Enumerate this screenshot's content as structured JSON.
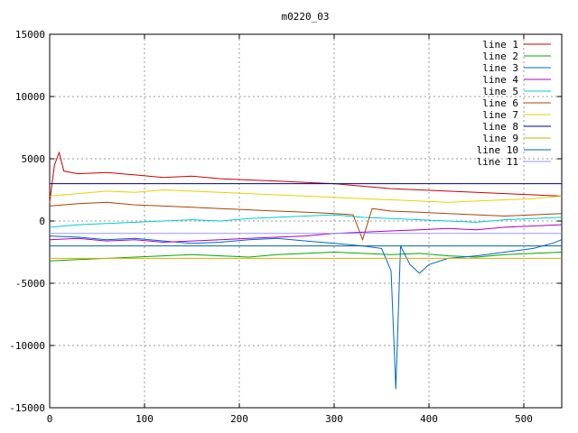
{
  "chart_data": {
    "type": "line",
    "title": "m0220_03",
    "xlabel": "",
    "ylabel": "",
    "xlim": [
      0,
      540
    ],
    "ylim": [
      -15000,
      15000
    ],
    "xticks": [
      0,
      100,
      200,
      300,
      400,
      500
    ],
    "yticks": [
      -15000,
      -10000,
      -5000,
      0,
      5000,
      10000,
      15000
    ],
    "grid": true,
    "legend_position": "top-right",
    "series": [
      {
        "name": "line 1",
        "color": "#cc0000",
        "points": [
          [
            0,
            1500
          ],
          [
            5,
            4500
          ],
          [
            10,
            5500
          ],
          [
            15,
            4000
          ],
          [
            30,
            3800
          ],
          [
            60,
            3900
          ],
          [
            90,
            3700
          ],
          [
            120,
            3500
          ],
          [
            150,
            3600
          ],
          [
            180,
            3400
          ],
          [
            210,
            3300
          ],
          [
            240,
            3200
          ],
          [
            270,
            3100
          ],
          [
            300,
            3000
          ],
          [
            330,
            2800
          ],
          [
            360,
            2600
          ],
          [
            390,
            2500
          ],
          [
            420,
            2400
          ],
          [
            450,
            2300
          ],
          [
            480,
            2200
          ],
          [
            510,
            2100
          ],
          [
            540,
            2000
          ]
        ]
      },
      {
        "name": "line 2",
        "color": "#00aa00",
        "points": [
          [
            0,
            -3200
          ],
          [
            30,
            -3100
          ],
          [
            60,
            -3000
          ],
          [
            90,
            -2900
          ],
          [
            120,
            -2800
          ],
          [
            150,
            -2700
          ],
          [
            180,
            -2800
          ],
          [
            210,
            -2900
          ],
          [
            240,
            -2700
          ],
          [
            270,
            -2600
          ],
          [
            300,
            -2500
          ],
          [
            330,
            -2600
          ],
          [
            360,
            -2700
          ],
          [
            390,
            -2600
          ],
          [
            420,
            -2800
          ],
          [
            450,
            -2900
          ],
          [
            480,
            -2700
          ],
          [
            510,
            -2600
          ],
          [
            540,
            -2500
          ]
        ]
      },
      {
        "name": "line 3",
        "color": "#0066cc",
        "points": [
          [
            0,
            -1200
          ],
          [
            30,
            -1300
          ],
          [
            60,
            -1500
          ],
          [
            90,
            -1400
          ],
          [
            120,
            -1600
          ],
          [
            150,
            -1800
          ],
          [
            180,
            -1700
          ],
          [
            210,
            -1500
          ],
          [
            240,
            -1400
          ],
          [
            270,
            -1600
          ],
          [
            300,
            -1800
          ],
          [
            330,
            -2000
          ],
          [
            350,
            -2200
          ],
          [
            360,
            -4000
          ],
          [
            365,
            -13500
          ],
          [
            370,
            -2000
          ],
          [
            380,
            -3500
          ],
          [
            390,
            -4200
          ],
          [
            400,
            -3500
          ],
          [
            420,
            -3000
          ],
          [
            450,
            -2800
          ],
          [
            480,
            -2500
          ],
          [
            510,
            -2200
          ],
          [
            530,
            -1800
          ],
          [
            540,
            -1500
          ]
        ]
      },
      {
        "name": "line 4",
        "color": "#aa00cc",
        "points": [
          [
            0,
            -1500
          ],
          [
            30,
            -1400
          ],
          [
            60,
            -1600
          ],
          [
            90,
            -1500
          ],
          [
            120,
            -1700
          ],
          [
            150,
            -1600
          ],
          [
            180,
            -1500
          ],
          [
            210,
            -1400
          ],
          [
            240,
            -1300
          ],
          [
            270,
            -1200
          ],
          [
            300,
            -1000
          ],
          [
            330,
            -900
          ],
          [
            360,
            -800
          ],
          [
            390,
            -700
          ],
          [
            420,
            -600
          ],
          [
            450,
            -700
          ],
          [
            480,
            -500
          ],
          [
            510,
            -400
          ],
          [
            540,
            -300
          ]
        ]
      },
      {
        "name": "line 5",
        "color": "#00cccc",
        "points": [
          [
            0,
            -500
          ],
          [
            30,
            -300
          ],
          [
            60,
            -200
          ],
          [
            90,
            -100
          ],
          [
            120,
            0
          ],
          [
            150,
            100
          ],
          [
            180,
            0
          ],
          [
            210,
            200
          ],
          [
            240,
            300
          ],
          [
            270,
            400
          ],
          [
            300,
            500
          ],
          [
            330,
            300
          ],
          [
            360,
            200
          ],
          [
            390,
            100
          ],
          [
            420,
            0
          ],
          [
            450,
            -100
          ],
          [
            480,
            100
          ],
          [
            510,
            200
          ],
          [
            540,
            300
          ]
        ]
      },
      {
        "name": "line 6",
        "color": "#aa4400",
        "points": [
          [
            0,
            1200
          ],
          [
            30,
            1400
          ],
          [
            60,
            1500
          ],
          [
            90,
            1300
          ],
          [
            120,
            1200
          ],
          [
            150,
            1100
          ],
          [
            180,
            1000
          ],
          [
            210,
            900
          ],
          [
            240,
            800
          ],
          [
            270,
            700
          ],
          [
            300,
            600
          ],
          [
            320,
            500
          ],
          [
            330,
            -1500
          ],
          [
            340,
            1000
          ],
          [
            360,
            800
          ],
          [
            390,
            700
          ],
          [
            420,
            600
          ],
          [
            450,
            500
          ],
          [
            480,
            400
          ],
          [
            510,
            500
          ],
          [
            540,
            600
          ]
        ]
      },
      {
        "name": "line 7",
        "color": "#e6d200",
        "points": [
          [
            0,
            2000
          ],
          [
            30,
            2200
          ],
          [
            60,
            2400
          ],
          [
            90,
            2300
          ],
          [
            120,
            2500
          ],
          [
            150,
            2400
          ],
          [
            180,
            2300
          ],
          [
            210,
            2200
          ],
          [
            240,
            2100
          ],
          [
            270,
            2000
          ],
          [
            300,
            1900
          ],
          [
            330,
            1800
          ],
          [
            360,
            1700
          ],
          [
            390,
            1600
          ],
          [
            420,
            1500
          ],
          [
            450,
            1600
          ],
          [
            480,
            1700
          ],
          [
            510,
            1800
          ],
          [
            540,
            2000
          ]
        ]
      },
      {
        "name": "line 8",
        "color": "#000099",
        "points": [
          [
            0,
            3000
          ],
          [
            540,
            3000
          ]
        ]
      },
      {
        "name": "line 9",
        "color": "#e6a800",
        "points": [
          [
            0,
            -3000
          ],
          [
            540,
            -3000
          ]
        ]
      },
      {
        "name": "line 10",
        "color": "#006699",
        "points": [
          [
            0,
            -2000
          ],
          [
            540,
            -2000
          ]
        ]
      },
      {
        "name": "line 11",
        "color": "#9999ff",
        "points": [
          [
            0,
            -1000
          ],
          [
            540,
            -1000
          ]
        ]
      }
    ]
  }
}
